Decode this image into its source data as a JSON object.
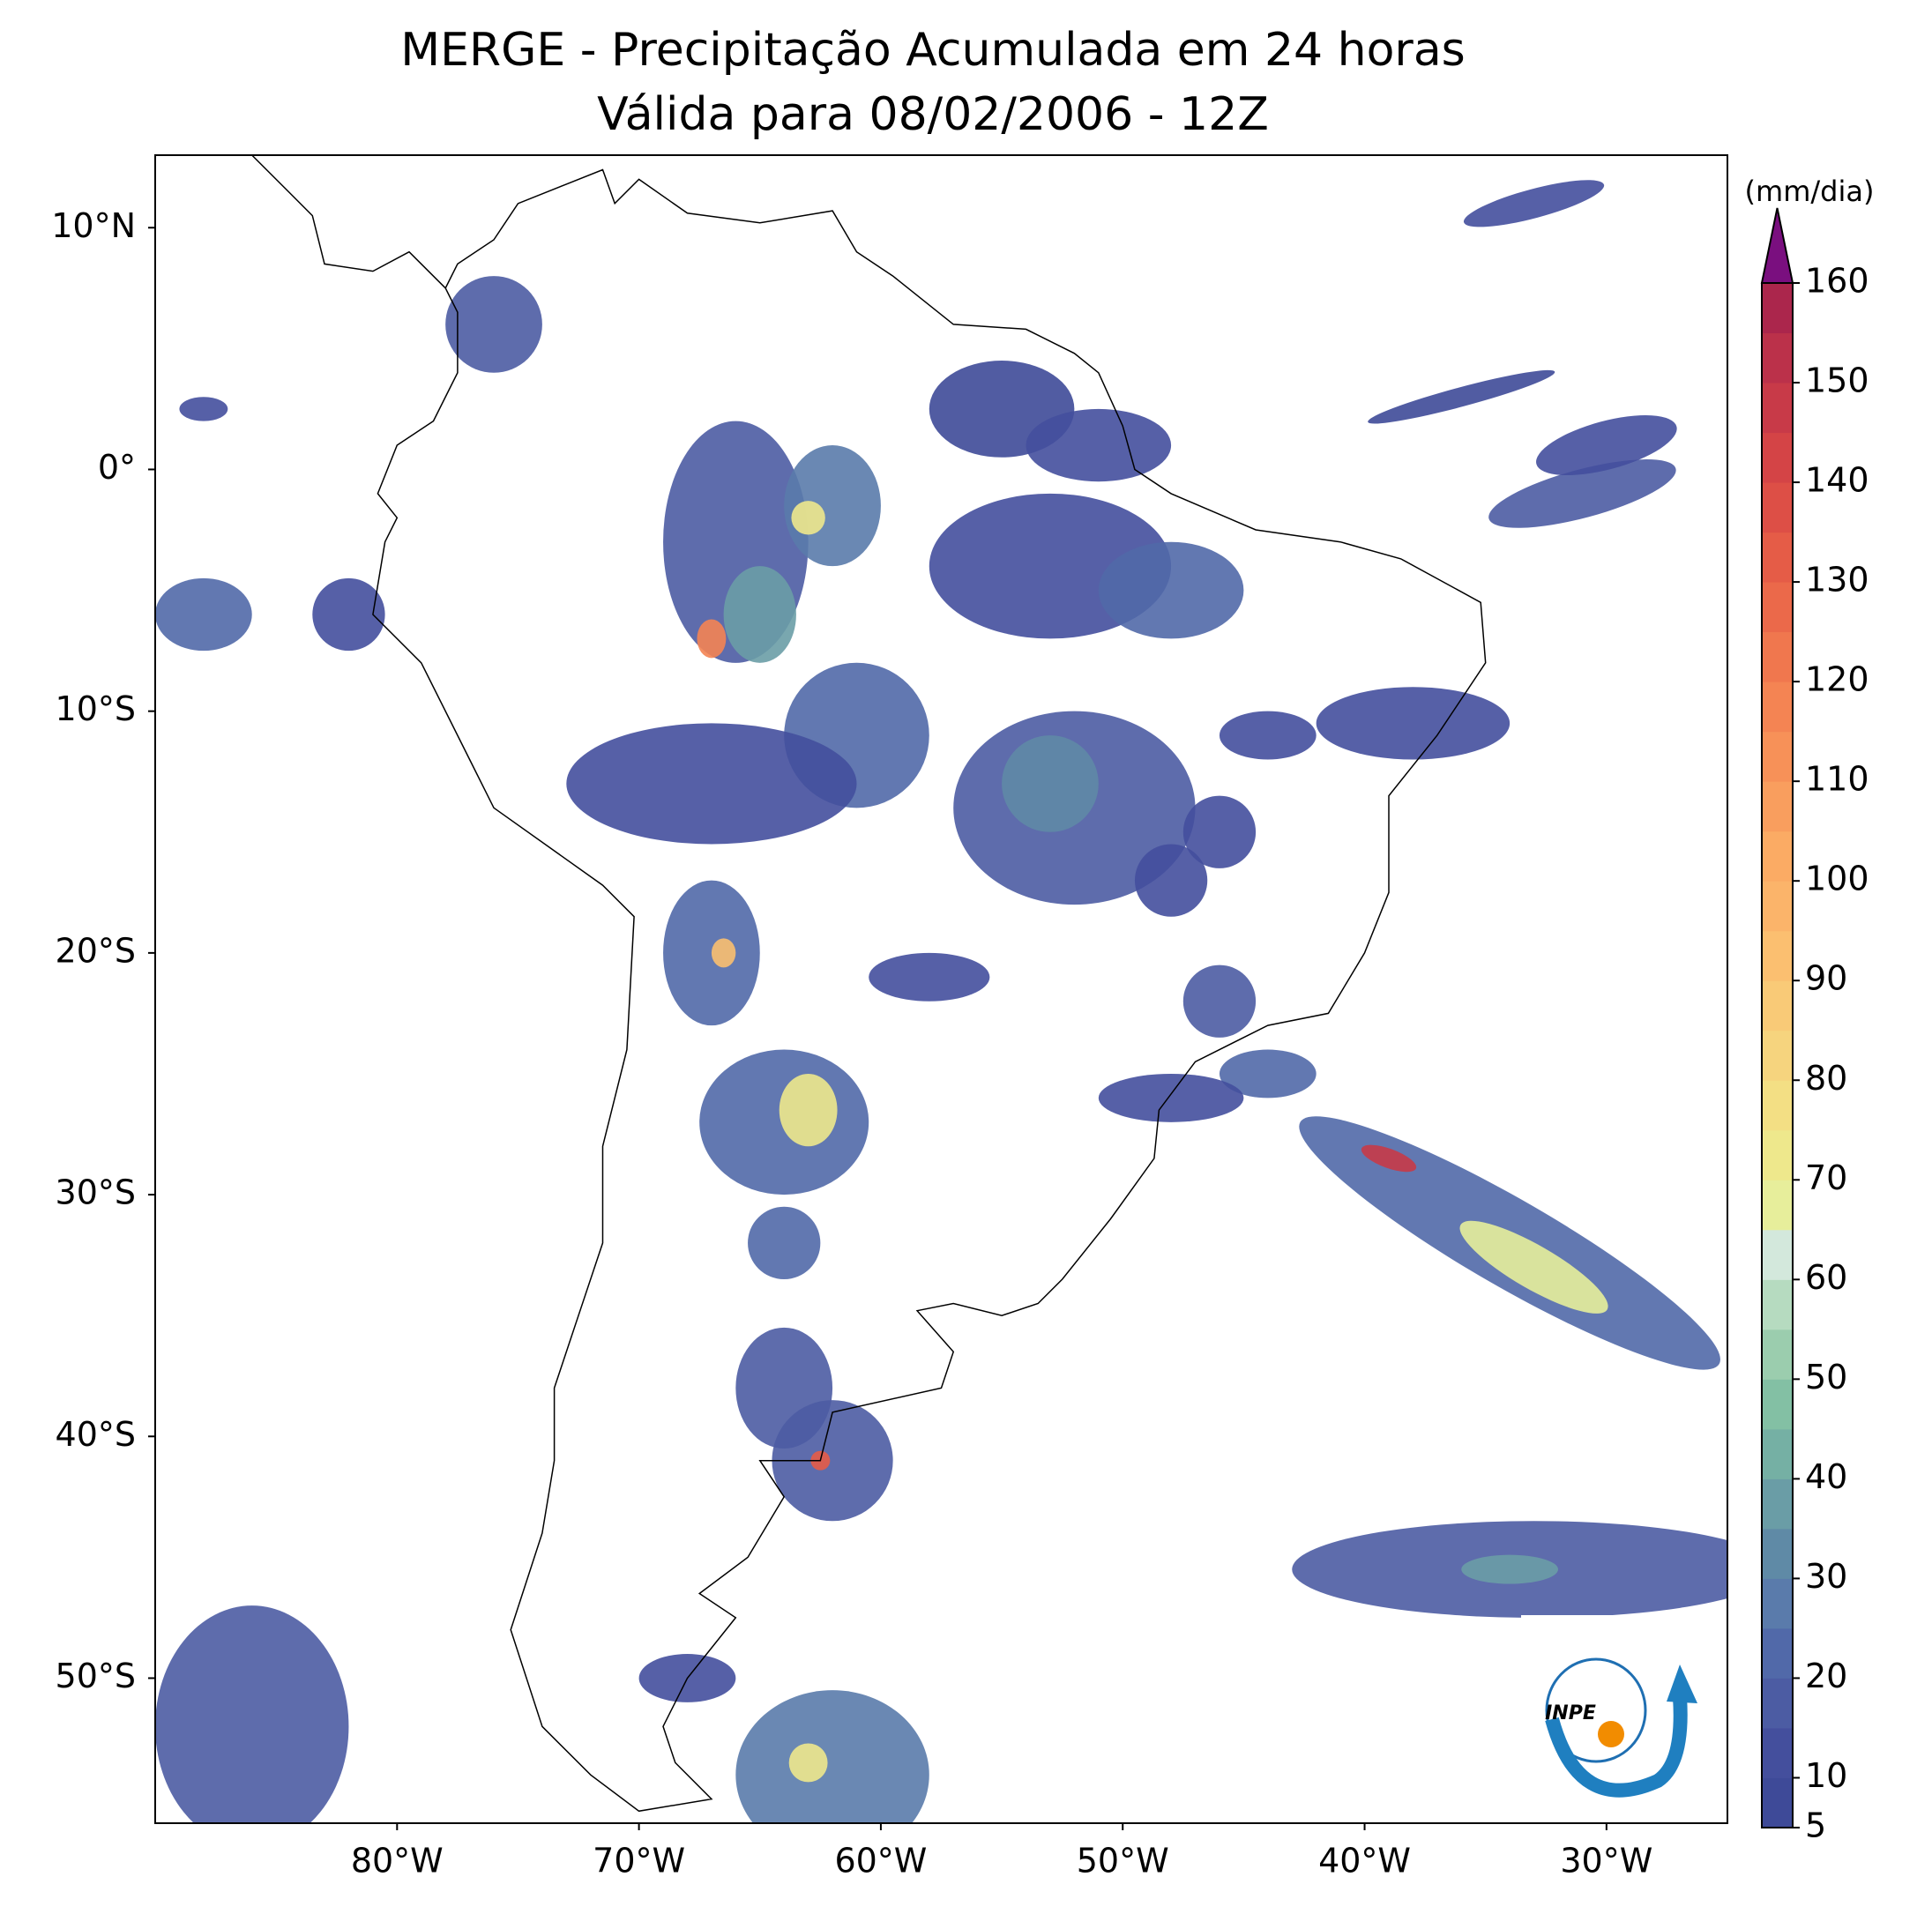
{
  "chart_data": {
    "type": "map",
    "title": "MERGE - Precipitação Acumulada em 24 horas",
    "subtitle": "Válida para 08/02/2006 - 12Z",
    "xlim": [
      -90,
      -25
    ],
    "ylim": [
      -56,
      13
    ],
    "xticks": [
      {
        "value": -80,
        "label": "80°W"
      },
      {
        "value": -70,
        "label": "70°W"
      },
      {
        "value": -60,
        "label": "60°W"
      },
      {
        "value": -50,
        "label": "50°W"
      },
      {
        "value": -40,
        "label": "40°W"
      },
      {
        "value": -30,
        "label": "30°W"
      }
    ],
    "yticks": [
      {
        "value": 10,
        "label": "10°N"
      },
      {
        "value": 0,
        "label": "0°"
      },
      {
        "value": -10,
        "label": "10°S"
      },
      {
        "value": -20,
        "label": "20°S"
      },
      {
        "value": -30,
        "label": "30°S"
      },
      {
        "value": -40,
        "label": "40°S"
      },
      {
        "value": -50,
        "label": "50°S"
      }
    ],
    "colorbar": {
      "label": "(mm/dia)",
      "lim": [
        5,
        160
      ],
      "ticks": [
        5,
        10,
        20,
        30,
        40,
        50,
        60,
        70,
        80,
        90,
        100,
        110,
        120,
        130,
        140,
        150,
        160
      ],
      "colors": [
        "#3e4a98",
        "#444f9d",
        "#4c5ca3",
        "#5169a9",
        "#5a7bab",
        "#5f8aa6",
        "#6a9da6",
        "#75b0a4",
        "#83c0a4",
        "#9bcdae",
        "#b6dbc0",
        "#d3e8dc",
        "#e7ee9b",
        "#eee88c",
        "#f3df84",
        "#f6d47e",
        "#f9ca77",
        "#fbbf70",
        "#fbb46a",
        "#fbab64",
        "#f99e5e",
        "#f79158",
        "#f48453",
        "#f0774e",
        "#eb694a",
        "#e55c47",
        "#dd4f46",
        "#d44446",
        "#c83a48",
        "#bb314a",
        "#ab264c"
      ],
      "extend_color": "#7a0f7f"
    },
    "logo": "INPE"
  }
}
